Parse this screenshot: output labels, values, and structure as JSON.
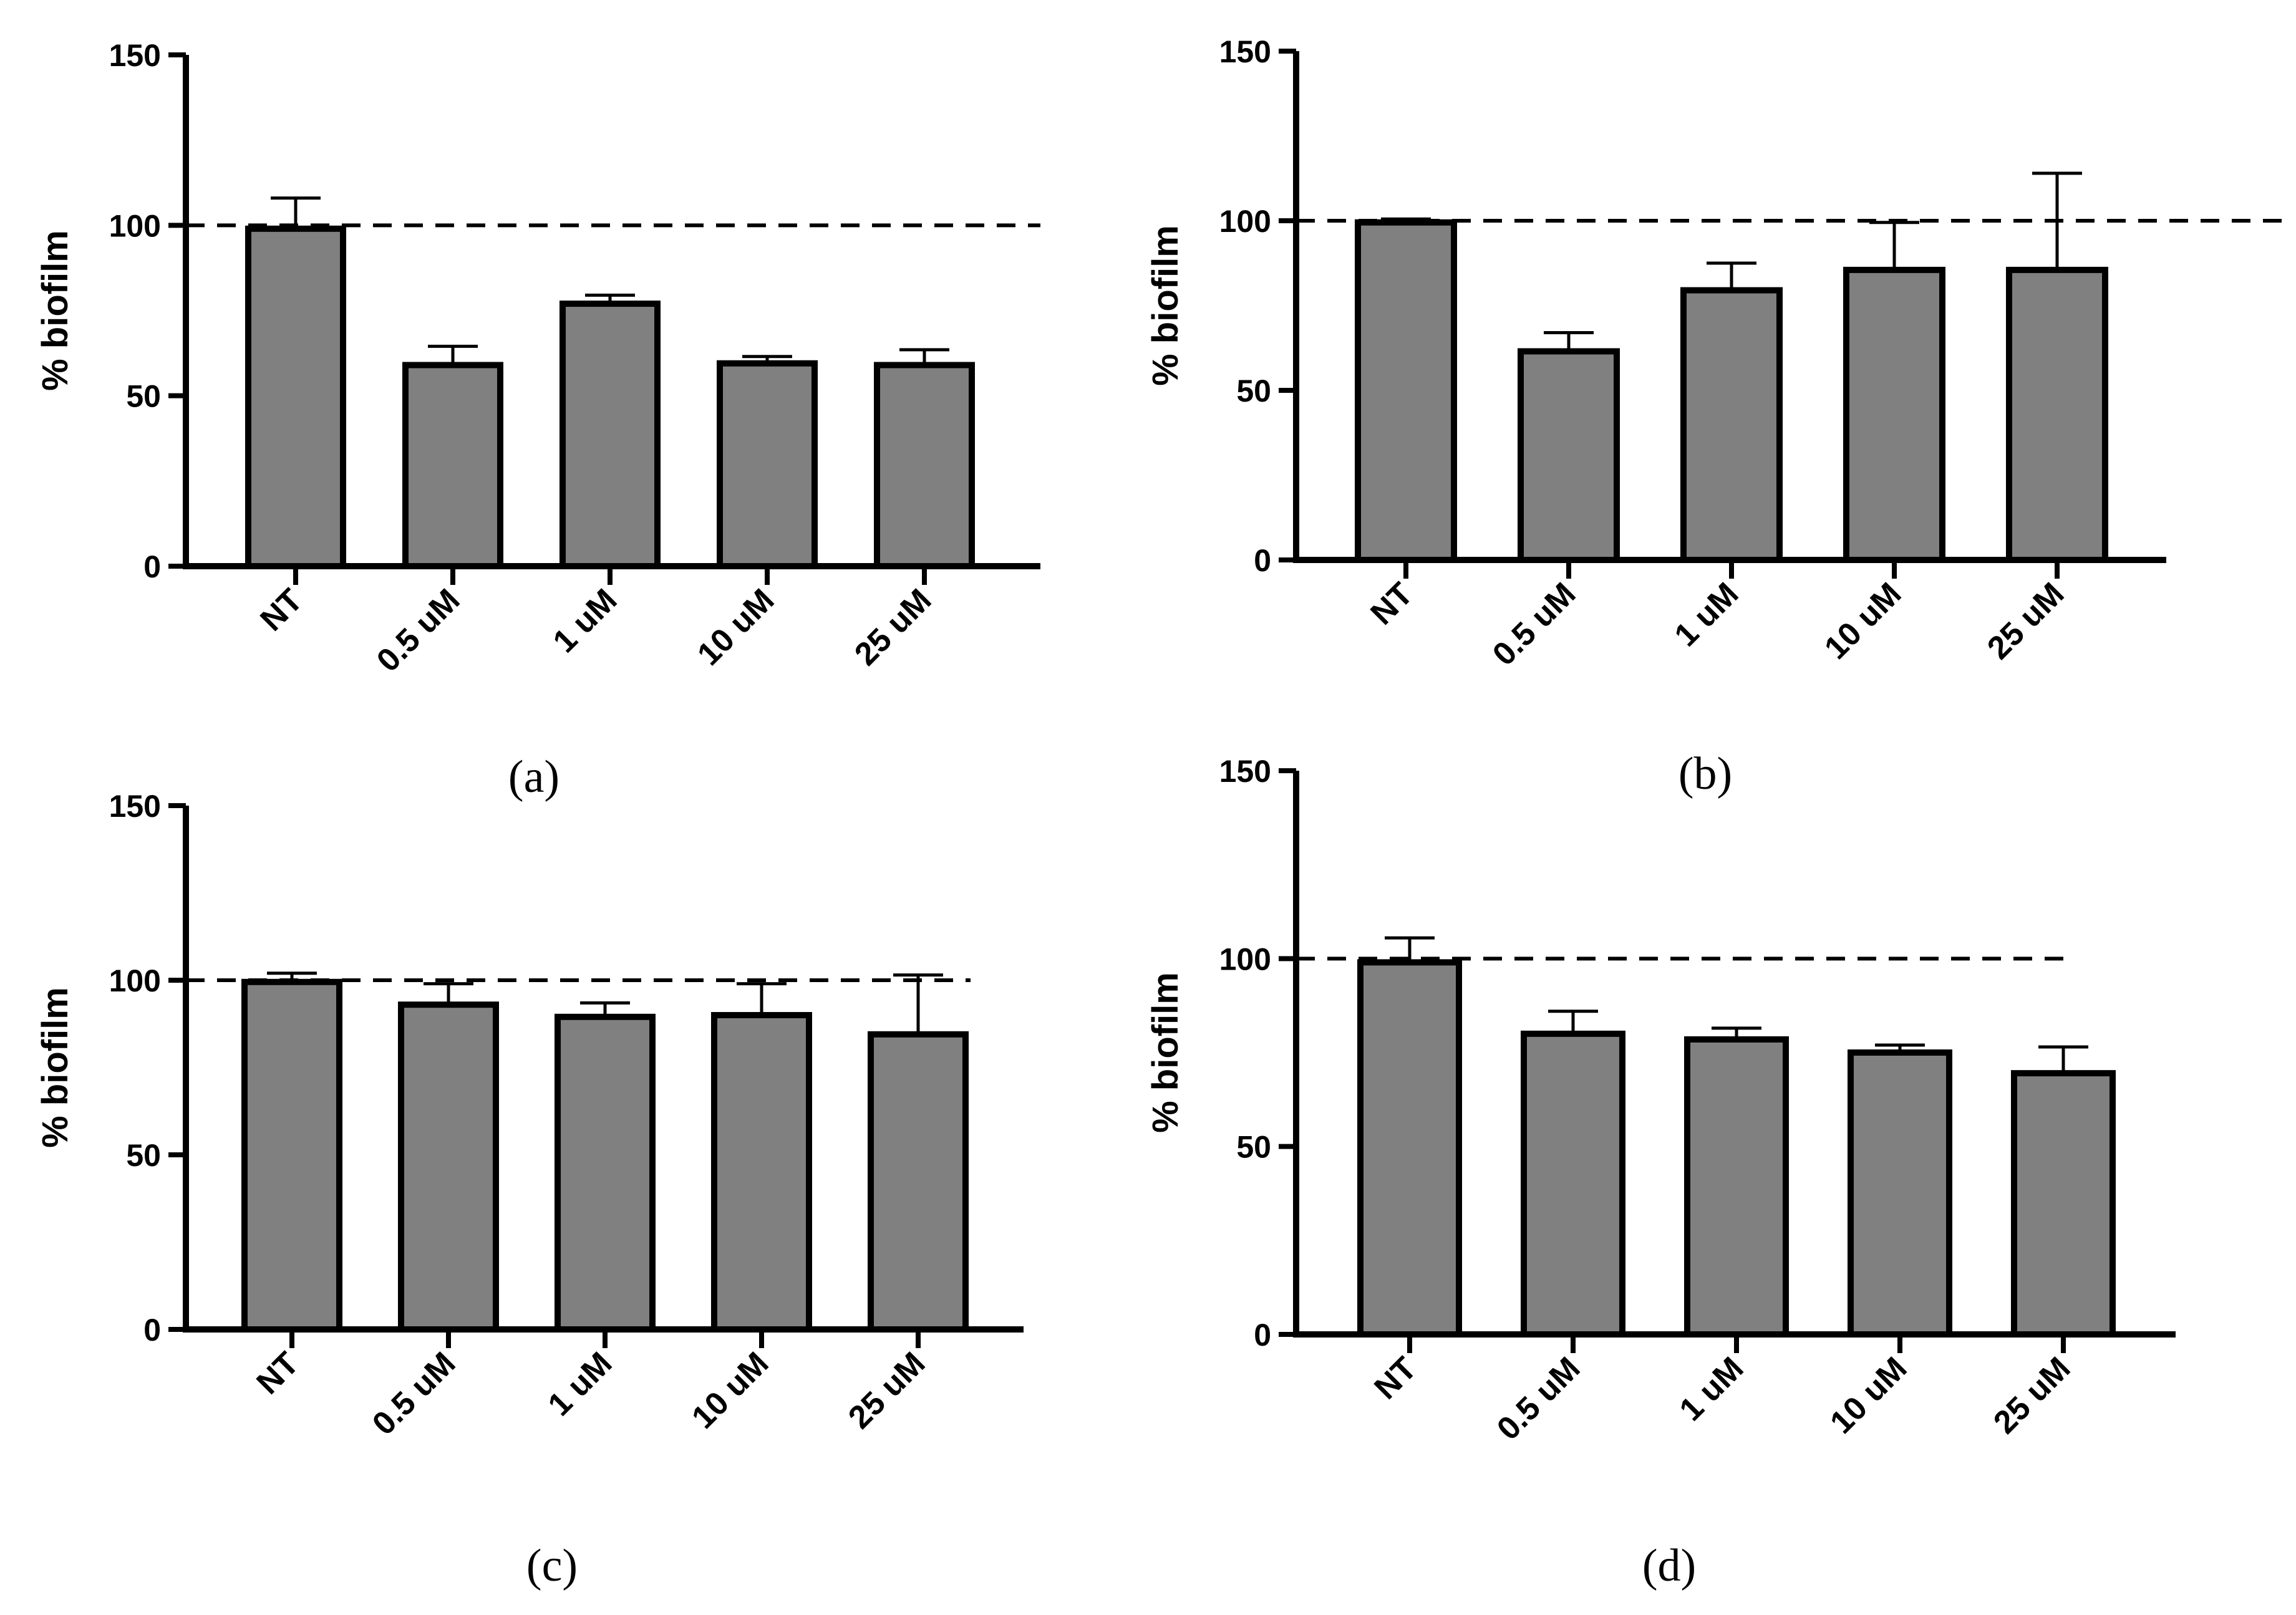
{
  "chart_data": [
    {
      "type": "bar",
      "panel": "(a)",
      "categories": [
        "NT",
        "0.5 uM",
        "1 uM",
        "10 uM",
        "25 uM"
      ],
      "values": [
        99,
        59,
        77,
        59.5,
        59
      ],
      "error_upper": [
        108,
        64.5,
        79.5,
        61.5,
        63.5
      ],
      "ylabel": "% biofilm",
      "ylim": [
        0,
        150
      ],
      "yticks": [
        0,
        50,
        100,
        150
      ],
      "reference_line": 100,
      "bar_color": "#808080"
    },
    {
      "type": "bar",
      "panel": "(b)",
      "categories": [
        "NT",
        "0.5 uM",
        "1 uM",
        "10 uM",
        "25 uM"
      ],
      "values": [
        99.5,
        61.5,
        79.5,
        85.5,
        85.5
      ],
      "error_upper": [
        100.5,
        67,
        87.5,
        99.5,
        114
      ],
      "ylabel": "% biofilm",
      "ylim": [
        0,
        150
      ],
      "yticks": [
        0,
        50,
        100,
        150
      ],
      "reference_line": 100,
      "bar_color": "#808080"
    },
    {
      "type": "bar",
      "panel": "(c)",
      "categories": [
        "NT",
        "0.5 uM",
        "1 uM",
        "10 uM",
        "25 uM"
      ],
      "values": [
        99.5,
        93,
        89.5,
        90,
        84.5
      ],
      "error_upper": [
        102,
        99,
        93.5,
        99,
        101.5
      ],
      "ylabel": "% biofilm",
      "ylim": [
        0,
        150
      ],
      "yticks": [
        0,
        50,
        100,
        150
      ],
      "reference_line": 100,
      "bar_color": "#808080"
    },
    {
      "type": "bar",
      "panel": "(d)",
      "categories": [
        "NT",
        "0.5 uM",
        "1 uM",
        "10 uM",
        "25 uM"
      ],
      "values": [
        99,
        80,
        78.5,
        75,
        69.5
      ],
      "error_upper": [
        105.5,
        86,
        81.5,
        77,
        76.5
      ],
      "ylabel": "% biofilm",
      "ylim": [
        0,
        150
      ],
      "yticks": [
        0,
        50,
        100,
        150
      ],
      "reference_line": 100,
      "bar_color": "#808080"
    }
  ]
}
